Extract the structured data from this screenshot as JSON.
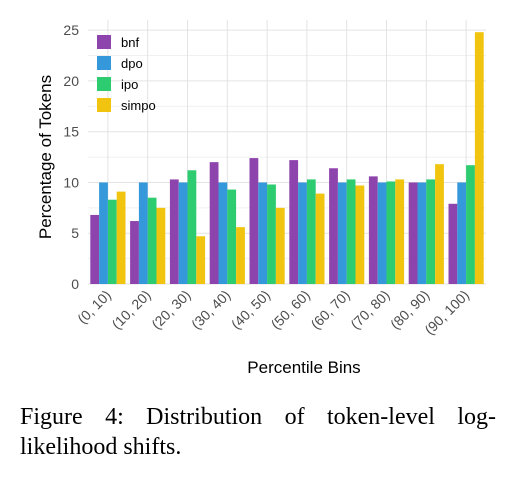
{
  "chart_data": {
    "type": "bar",
    "xlabel": "Percentile Bins",
    "ylabel": "Percentage of Tokens",
    "ylim": [
      0,
      26
    ],
    "yticks": [
      0,
      5,
      10,
      15,
      20,
      25
    ],
    "grid": true,
    "legend_position": "top-left",
    "categories": [
      "(0, 10)",
      "(10, 20)",
      "(20, 30)",
      "(30, 40)",
      "(40, 50)",
      "(50, 60)",
      "(60, 70)",
      "(70, 80)",
      "(80, 90)",
      "(90, 100)"
    ],
    "series": [
      {
        "name": "bnf",
        "color": "#8E44AD",
        "values": [
          6.8,
          6.2,
          10.3,
          12.0,
          12.4,
          12.2,
          11.4,
          10.6,
          10.0,
          7.9
        ]
      },
      {
        "name": "dpo",
        "color": "#3498DB",
        "values": [
          10.0,
          10.0,
          10.0,
          10.0,
          10.0,
          10.0,
          10.0,
          10.0,
          10.0,
          10.0
        ]
      },
      {
        "name": "ipo",
        "color": "#2ECC71",
        "values": [
          8.3,
          8.5,
          11.2,
          9.3,
          9.8,
          10.3,
          10.3,
          10.1,
          10.3,
          11.7
        ]
      },
      {
        "name": "simpo",
        "color": "#F1C40F",
        "values": [
          9.1,
          7.5,
          4.7,
          5.6,
          7.5,
          8.9,
          9.7,
          10.3,
          11.8,
          24.8
        ]
      }
    ]
  },
  "caption": "Figure 4: Distribution of token-level log-likelihood shifts."
}
